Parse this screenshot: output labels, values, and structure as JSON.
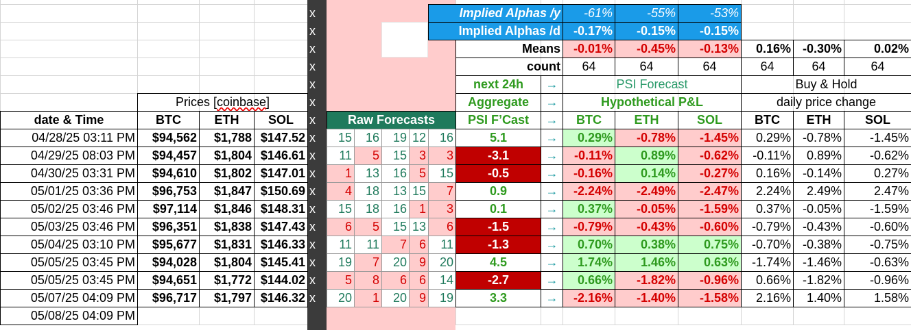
{
  "alphas": {
    "per_year_label": "Implied Alphas /y",
    "per_year": [
      "-61%",
      "-55%",
      "-53%"
    ],
    "per_day_label": "Implied Alphas /d",
    "per_day": [
      "-0.17%",
      "-0.15%",
      "-0.15%"
    ]
  },
  "summary": {
    "means_label": "Means",
    "means": [
      "-0.01%",
      "-0.45%",
      "-0.13%",
      "0.16%",
      "-0.30%",
      "0.02%"
    ],
    "count_label": "count",
    "count": [
      64,
      64,
      64,
      64,
      64,
      64
    ]
  },
  "headers": {
    "next_24h": "next 24h",
    "aggregate": "Aggregate",
    "psi_fcast": "PSI F’Cast",
    "arrow": "→",
    "psi_forecast": "PSI Forecast",
    "hypothetical_pl": "Hypothetical P&L",
    "buy_hold": "Buy & Hold",
    "daily_change": "daily price change",
    "prices_prefix": "Prices [",
    "prices_source": "coinbase",
    "prices_suffix": "]",
    "date_time": "date & Time",
    "coins": [
      "BTC",
      "ETH",
      "SOL"
    ],
    "marker": "x",
    "raw_forecasts": "Raw Forecasts"
  },
  "rows": [
    {
      "date": "04/28/25 03:11 PM",
      "prices": [
        "$94,562",
        "$1,788",
        "$147.52"
      ],
      "raw": [
        15,
        16,
        19,
        12,
        16
      ],
      "psi": 5.1,
      "pl": [
        "0.29%",
        "-0.78%",
        "-1.45%"
      ],
      "bh": [
        "0.29%",
        "-0.78%",
        "-1.45%"
      ]
    },
    {
      "date": "04/29/25 08:03 PM",
      "prices": [
        "$94,457",
        "$1,804",
        "$146.61"
      ],
      "raw": [
        11,
        5,
        15,
        3,
        3
      ],
      "psi": -3.1,
      "pl": [
        "-0.11%",
        "0.89%",
        "-0.62%"
      ],
      "bh": [
        "-0.11%",
        "0.89%",
        "-0.62%"
      ]
    },
    {
      "date": "04/30/25 03:31 PM",
      "prices": [
        "$94,610",
        "$1,802",
        "$147.01"
      ],
      "raw": [
        1,
        13,
        16,
        5,
        15
      ],
      "psi": -0.5,
      "pl": [
        "-0.16%",
        "0.14%",
        "-0.27%"
      ],
      "bh": [
        "0.16%",
        "-0.14%",
        "0.27%"
      ]
    },
    {
      "date": "05/01/25 03:36 PM",
      "prices": [
        "$96,753",
        "$1,847",
        "$150.69"
      ],
      "raw": [
        4,
        18,
        13,
        15,
        7
      ],
      "psi": 0.9,
      "pl": [
        "-2.24%",
        "-2.49%",
        "-2.47%"
      ],
      "bh": [
        "2.24%",
        "2.49%",
        "2.47%"
      ]
    },
    {
      "date": "05/02/25 03:46 PM",
      "prices": [
        "$97,114",
        "$1,846",
        "$148.31"
      ],
      "raw": [
        15,
        18,
        16,
        1,
        3
      ],
      "psi": 0.1,
      "pl": [
        "0.37%",
        "-0.05%",
        "-1.59%"
      ],
      "bh": [
        "0.37%",
        "-0.05%",
        "-1.59%"
      ]
    },
    {
      "date": "05/03/25 03:46 PM",
      "prices": [
        "$96,351",
        "$1,838",
        "$147.43"
      ],
      "raw": [
        6,
        5,
        15,
        13,
        6
      ],
      "psi": -1.5,
      "pl": [
        "-0.79%",
        "-0.43%",
        "-0.60%"
      ],
      "bh": [
        "-0.79%",
        "-0.43%",
        "-0.60%"
      ]
    },
    {
      "date": "05/04/25 03:10 PM",
      "prices": [
        "$95,677",
        "$1,831",
        "$146.33"
      ],
      "raw": [
        11,
        11,
        7,
        6,
        11
      ],
      "psi": -1.3,
      "pl": [
        "0.70%",
        "0.38%",
        "0.75%"
      ],
      "bh": [
        "-0.70%",
        "-0.38%",
        "-0.75%"
      ]
    },
    {
      "date": "05/05/25 03:45 PM",
      "prices": [
        "$94,028",
        "$1,804",
        "$145.41"
      ],
      "raw": [
        19,
        7,
        20,
        9,
        20
      ],
      "psi": 4.5,
      "pl": [
        "1.74%",
        "1.46%",
        "0.63%"
      ],
      "bh": [
        "-1.74%",
        "-1.46%",
        "-0.63%"
      ]
    },
    {
      "date": "05/05/25 03:45 PM",
      "prices": [
        "$94,651",
        "$1,772",
        "$144.02"
      ],
      "raw": [
        5,
        8,
        6,
        6,
        14
      ],
      "psi": -2.7,
      "pl": [
        "0.66%",
        "-1.82%",
        "-0.96%"
      ],
      "bh": [
        "0.66%",
        "-1.82%",
        "-0.96%"
      ]
    },
    {
      "date": "05/07/25 04:09 PM",
      "prices": [
        "$96,717",
        "$1,797",
        "$146.32"
      ],
      "raw": [
        20,
        1,
        20,
        9,
        19
      ],
      "psi": 3.3,
      "pl": [
        "-2.16%",
        "-1.40%",
        "-1.58%"
      ],
      "bh": [
        "2.16%",
        "1.40%",
        "1.58%"
      ]
    }
  ],
  "extra_dates": [
    "05/08/25 04:09 PM"
  ]
}
